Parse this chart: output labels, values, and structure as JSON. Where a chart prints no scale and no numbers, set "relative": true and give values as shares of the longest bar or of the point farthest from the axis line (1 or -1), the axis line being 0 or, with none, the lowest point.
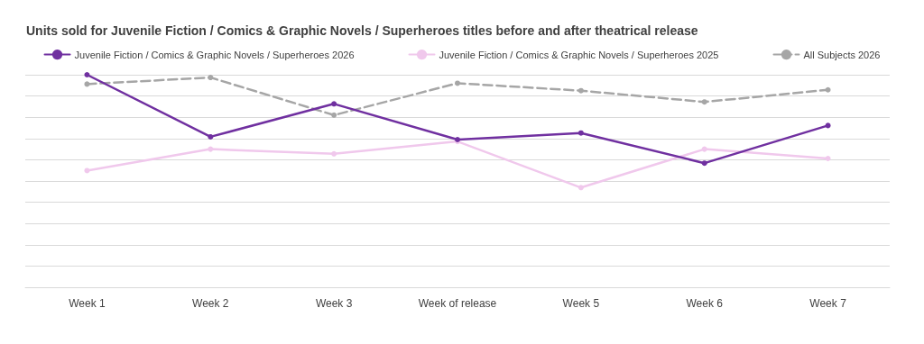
{
  "chart_data": {
    "type": "line",
    "title": "Units sold for Juvenile Fiction / Comics & Graphic Novels / Superheroes titles before and after theatrical release",
    "categories": [
      "Week 1",
      "Week 2",
      "Week 3",
      "Week of release",
      "Week 5",
      "Week 6",
      "Week 7"
    ],
    "relative": true,
    "grid": "y",
    "legend": "top",
    "marker": "circle",
    "series": [
      {
        "name": "Juvenile Fiction / Comics & Graphic Novels / Superheroes 2026",
        "color": "#7030a0",
        "line_style": "solid",
        "values": [
          1.0,
          0.708,
          0.863,
          0.695,
          0.726,
          0.584,
          0.761
        ]
      },
      {
        "name": "Juvenile Fiction / Comics & Graphic Novels / Superheroes 2025",
        "color": "#f0c8ec",
        "line_style": "solid",
        "values": [
          0.549,
          0.65,
          0.628,
          0.686,
          0.469,
          0.65,
          0.606
        ]
      },
      {
        "name": "All Subjects 2026",
        "color": "#a6a6a6",
        "line_style": "dashed",
        "values": [
          0.956,
          0.987,
          0.81,
          0.96,
          0.925,
          0.872,
          0.929
        ]
      }
    ]
  }
}
